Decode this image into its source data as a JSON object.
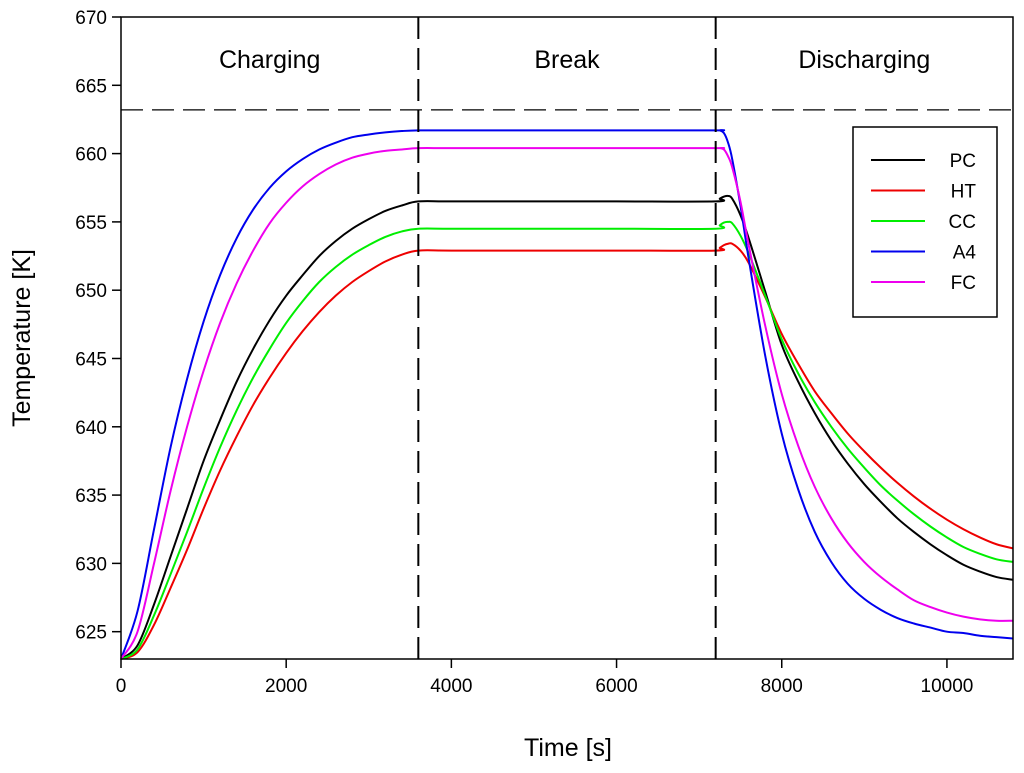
{
  "chart_data": {
    "type": "line",
    "title": "",
    "xlabel": "Time [s]",
    "ylabel": "Temperature [K]",
    "xlim": [
      0,
      10800
    ],
    "ylim": [
      623,
      670
    ],
    "xticks": [
      0,
      2000,
      4000,
      6000,
      8000,
      10000
    ],
    "yticks": [
      625,
      630,
      635,
      640,
      645,
      650,
      655,
      660,
      665,
      670
    ],
    "grid": false,
    "legend_position": "top-right",
    "phases": [
      {
        "label": "Charging",
        "start": 0,
        "end": 3600
      },
      {
        "label": "Break",
        "start": 3600,
        "end": 7200
      },
      {
        "label": "Discharging",
        "start": 7200,
        "end": 10800
      }
    ],
    "phase_boundaries": [
      3600,
      7200
    ],
    "reference_line": {
      "y": 663.2,
      "style": "dashed"
    },
    "x": [
      0,
      200,
      400,
      600,
      800,
      1000,
      1200,
      1400,
      1600,
      1800,
      2000,
      2200,
      2400,
      2600,
      2800,
      3000,
      3200,
      3400,
      3600,
      4000,
      5000,
      6000,
      7200,
      7250,
      7300,
      7350,
      7400,
      7500,
      7600,
      7800,
      8000,
      8200,
      8400,
      8600,
      8800,
      9000,
      9200,
      9400,
      9600,
      9800,
      10000,
      10200,
      10400,
      10600,
      10800
    ],
    "series": [
      {
        "name": "PC",
        "color": "#000000",
        "values": [
          623,
          624,
          627,
          630.5,
          634,
          637.5,
          640.5,
          643.3,
          645.7,
          647.8,
          649.6,
          651.1,
          652.5,
          653.6,
          654.5,
          655.2,
          655.8,
          656.2,
          656.5,
          656.5,
          656.5,
          656.5,
          656.5,
          656.7,
          656.85,
          656.9,
          656.7,
          655.5,
          653.8,
          649.9,
          646.0,
          643.3,
          641.0,
          639.0,
          637.3,
          635.8,
          634.5,
          633.3,
          632.3,
          631.4,
          630.6,
          629.9,
          629.4,
          629.0,
          628.8
        ]
      },
      {
        "name": "HT",
        "color": "#ee0000",
        "values": [
          623,
          623.5,
          625.5,
          628.2,
          631,
          634,
          636.8,
          639.3,
          641.6,
          643.6,
          645.4,
          647.0,
          648.4,
          649.6,
          650.6,
          651.4,
          652.1,
          652.6,
          652.9,
          652.9,
          652.9,
          652.9,
          652.9,
          653.1,
          653.3,
          653.4,
          653.4,
          652.9,
          652.0,
          649.5,
          646.8,
          644.6,
          642.6,
          641.0,
          639.5,
          638.2,
          637.0,
          635.9,
          634.9,
          634.0,
          633.2,
          632.5,
          631.9,
          631.4,
          631.1
        ]
      },
      {
        "name": "CC",
        "color": "#00ee00",
        "values": [
          623,
          623.7,
          626.2,
          629.2,
          632.3,
          635.5,
          638.5,
          641.2,
          643.6,
          645.7,
          647.6,
          649.2,
          650.6,
          651.7,
          652.6,
          653.3,
          653.9,
          654.3,
          654.5,
          654.5,
          654.5,
          654.5,
          654.5,
          654.75,
          654.95,
          655.0,
          654.9,
          654.0,
          652.7,
          649.6,
          646.4,
          643.9,
          641.8,
          640.0,
          638.4,
          637.0,
          635.7,
          634.6,
          633.6,
          632.7,
          631.9,
          631.2,
          630.7,
          630.3,
          630.1
        ]
      },
      {
        "name": "A4",
        "color": "#0000ee",
        "values": [
          623,
          626.5,
          632.5,
          638.5,
          643.5,
          647.7,
          651.1,
          653.8,
          655.9,
          657.5,
          658.7,
          659.6,
          660.3,
          660.8,
          661.2,
          661.4,
          661.55,
          661.65,
          661.7,
          661.7,
          661.7,
          661.7,
          661.7,
          661.7,
          661.5,
          660.8,
          659.6,
          656.2,
          652.3,
          645.2,
          639.5,
          635.4,
          632.3,
          630.1,
          628.5,
          627.4,
          626.6,
          626.0,
          625.6,
          625.3,
          625.0,
          624.9,
          624.7,
          624.6,
          624.5
        ]
      },
      {
        "name": "FC",
        "color": "#ee00ee",
        "values": [
          623,
          625,
          630,
          635.3,
          640,
          644.1,
          647.6,
          650.5,
          652.9,
          654.9,
          656.4,
          657.6,
          658.5,
          659.2,
          659.7,
          660.0,
          660.2,
          660.3,
          660.4,
          660.4,
          660.4,
          660.4,
          660.4,
          660.4,
          660.3,
          659.8,
          659.0,
          656.5,
          653.3,
          647.4,
          642.4,
          638.6,
          635.6,
          633.3,
          631.5,
          630.1,
          629.0,
          628.1,
          627.3,
          626.8,
          626.4,
          626.1,
          625.9,
          625.8,
          625.8
        ]
      }
    ]
  }
}
